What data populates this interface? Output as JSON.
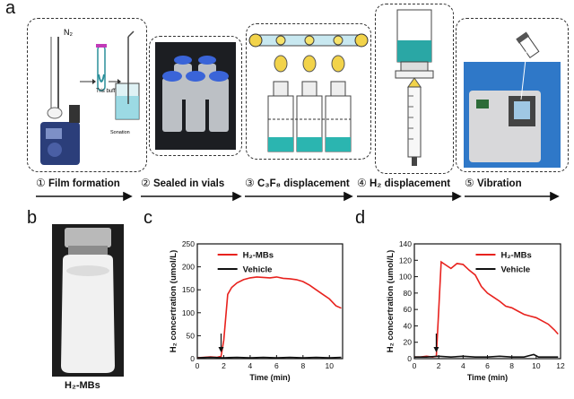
{
  "panels": {
    "a": "a",
    "b": "b",
    "c": "c",
    "d": "d"
  },
  "panel_a": {
    "steps": [
      {
        "num": "①",
        "label": "Film formation"
      },
      {
        "num": "②",
        "label": "Sealed in vials"
      },
      {
        "num": "③",
        "label": "C₃F₈ displacement"
      },
      {
        "num": "④",
        "label": "H₂ displacement"
      },
      {
        "num": "⑤",
        "label": "Vibration"
      }
    ],
    "gas_label": "N₂",
    "tris_buffer": "Tris buffer",
    "sonation": "Sonation"
  },
  "panel_b": {
    "vial_label": "H₂-MBs"
  },
  "chart_data": [
    {
      "type": "line",
      "panel": "c",
      "ylabel": "H₂ concertration (umol/L)",
      "xlabel": "Time (min)",
      "xlim": [
        0,
        11
      ],
      "ylim": [
        0,
        250
      ],
      "xticks": [
        0,
        2,
        4,
        6,
        8,
        10
      ],
      "yticks": [
        0,
        50,
        100,
        150,
        200,
        250
      ],
      "legend": "top-left",
      "series": [
        {
          "name": "H₂-MBs",
          "color": "#e8221e",
          "x": [
            0,
            0.5,
            1,
            1.5,
            1.8,
            2.0,
            2.3,
            2.6,
            3.0,
            3.5,
            4.0,
            4.5,
            5.0,
            5.5,
            6.0,
            6.5,
            7.0,
            7.5,
            8.0,
            8.5,
            9.0,
            9.5,
            10.0,
            10.5,
            10.9
          ],
          "y": [
            2,
            3,
            4,
            3,
            5,
            40,
            140,
            155,
            165,
            172,
            176,
            178,
            177,
            176,
            178,
            175,
            174,
            172,
            168,
            160,
            150,
            140,
            130,
            115,
            110
          ]
        },
        {
          "name": "Vehicle",
          "color": "#111111",
          "x": [
            0,
            1,
            2,
            3,
            4,
            5,
            6,
            7,
            8,
            9,
            10,
            10.9
          ],
          "y": [
            2,
            3,
            2,
            3,
            2,
            3,
            2,
            3,
            2,
            3,
            2,
            3
          ]
        }
      ],
      "arrow_x": 1.8
    },
    {
      "type": "line",
      "panel": "d",
      "ylabel": "H₂ concertration (umol/L)",
      "xlabel": "Time (min)",
      "xlim": [
        0,
        12
      ],
      "ylim": [
        0,
        140
      ],
      "xticks": [
        0,
        2,
        4,
        6,
        8,
        10,
        12
      ],
      "yticks": [
        0,
        20,
        40,
        60,
        80,
        100,
        120,
        140
      ],
      "legend": "top-right",
      "series": [
        {
          "name": "H₂-MBs",
          "color": "#e8221e",
          "x": [
            0,
            0.5,
            1,
            1.5,
            1.8,
            2.0,
            2.2,
            2.5,
            3.0,
            3.5,
            4.0,
            4.5,
            5.0,
            5.5,
            6.0,
            6.5,
            7.0,
            7.5,
            8.0,
            8.5,
            9.0,
            9.5,
            10.0,
            10.5,
            11.0,
            11.5,
            11.8
          ],
          "y": [
            2,
            2,
            3,
            2,
            3,
            60,
            118,
            115,
            110,
            116,
            115,
            108,
            102,
            88,
            80,
            75,
            70,
            64,
            62,
            58,
            54,
            52,
            50,
            46,
            42,
            35,
            30
          ]
        },
        {
          "name": "Vehicle",
          "color": "#111111",
          "x": [
            0,
            1,
            2,
            3,
            4,
            5,
            6,
            7,
            8,
            9,
            9.8,
            10.2,
            11,
            11.8
          ],
          "y": [
            2,
            2,
            3,
            2,
            3,
            2,
            2,
            3,
            2,
            2,
            5,
            2,
            2,
            2
          ]
        }
      ],
      "arrow_x": 1.8
    }
  ]
}
